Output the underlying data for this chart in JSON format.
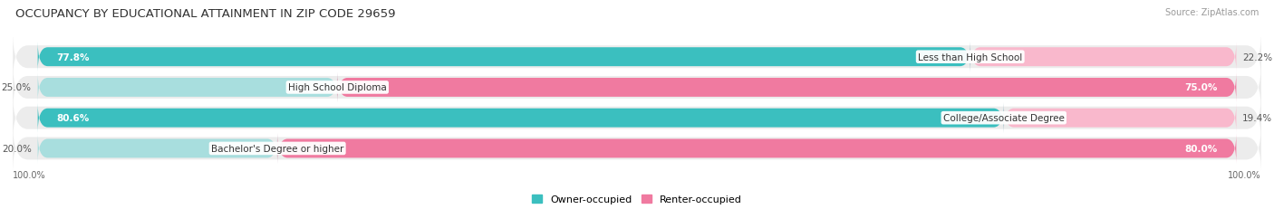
{
  "title": "OCCUPANCY BY EDUCATIONAL ATTAINMENT IN ZIP CODE 29659",
  "source": "Source: ZipAtlas.com",
  "categories": [
    "Less than High School",
    "High School Diploma",
    "College/Associate Degree",
    "Bachelor's Degree or higher"
  ],
  "owner_pct": [
    77.8,
    25.0,
    80.6,
    20.0
  ],
  "renter_pct": [
    22.2,
    75.0,
    19.4,
    80.0
  ],
  "owner_color": "#3bbfbf",
  "renter_color": "#f07aa0",
  "owner_color_light": "#a8dede",
  "renter_color_light": "#f9b8cc",
  "owner_label": "Owner-occupied",
  "renter_label": "Renter-occupied",
  "axis_label_left": "100.0%",
  "axis_label_right": "100.0%",
  "bg_color": "#ffffff",
  "bar_bg_color": "#ececec",
  "title_fontsize": 9.5,
  "source_fontsize": 7,
  "bar_height": 0.62,
  "label_fontsize": 7.5,
  "category_fontsize": 7.5
}
